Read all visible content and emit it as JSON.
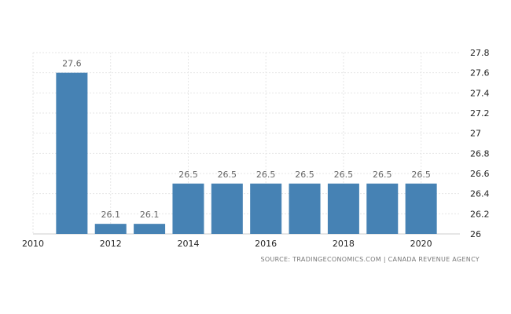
{
  "colors": {
    "bar": "#4682b4",
    "grid": "#e6e6e6",
    "axis": "#cccccc"
  },
  "chart_data": {
    "type": "bar",
    "title": "",
    "xlabel": "",
    "ylabel": "",
    "categories": [
      "2011",
      "2012",
      "2013",
      "2014",
      "2015",
      "2016",
      "2017",
      "2018",
      "2019",
      "2020"
    ],
    "values": [
      27.6,
      26.1,
      26.1,
      26.5,
      26.5,
      26.5,
      26.5,
      26.5,
      26.5,
      26.5
    ],
    "data_labels": [
      "27.6",
      "26.1",
      "26.1",
      "26.5",
      "26.5",
      "26.5",
      "26.5",
      "26.5",
      "26.5",
      "26.5"
    ],
    "ylim": [
      26,
      27.8
    ],
    "y_ticks": [
      26,
      26.2,
      26.4,
      26.6,
      26.8,
      27,
      27.2,
      27.4,
      27.6,
      27.8
    ],
    "y_tick_labels": [
      "26",
      "26.2",
      "26.4",
      "26.6",
      "26.8",
      "27",
      "27.2",
      "27.4",
      "27.6",
      "27.8"
    ],
    "xlim": [
      2010,
      2021
    ],
    "x_ticks": [
      2010,
      2012,
      2014,
      2016,
      2018,
      2020
    ],
    "x_tick_labels": [
      "2010",
      "2012",
      "2014",
      "2016",
      "2018",
      "2020"
    ],
    "y_axis_position": "right",
    "grid": true,
    "legend": "none",
    "source": "SOURCE: TRADINGECONOMICS.COM  |  CANADA REVENUE AGENCY"
  }
}
